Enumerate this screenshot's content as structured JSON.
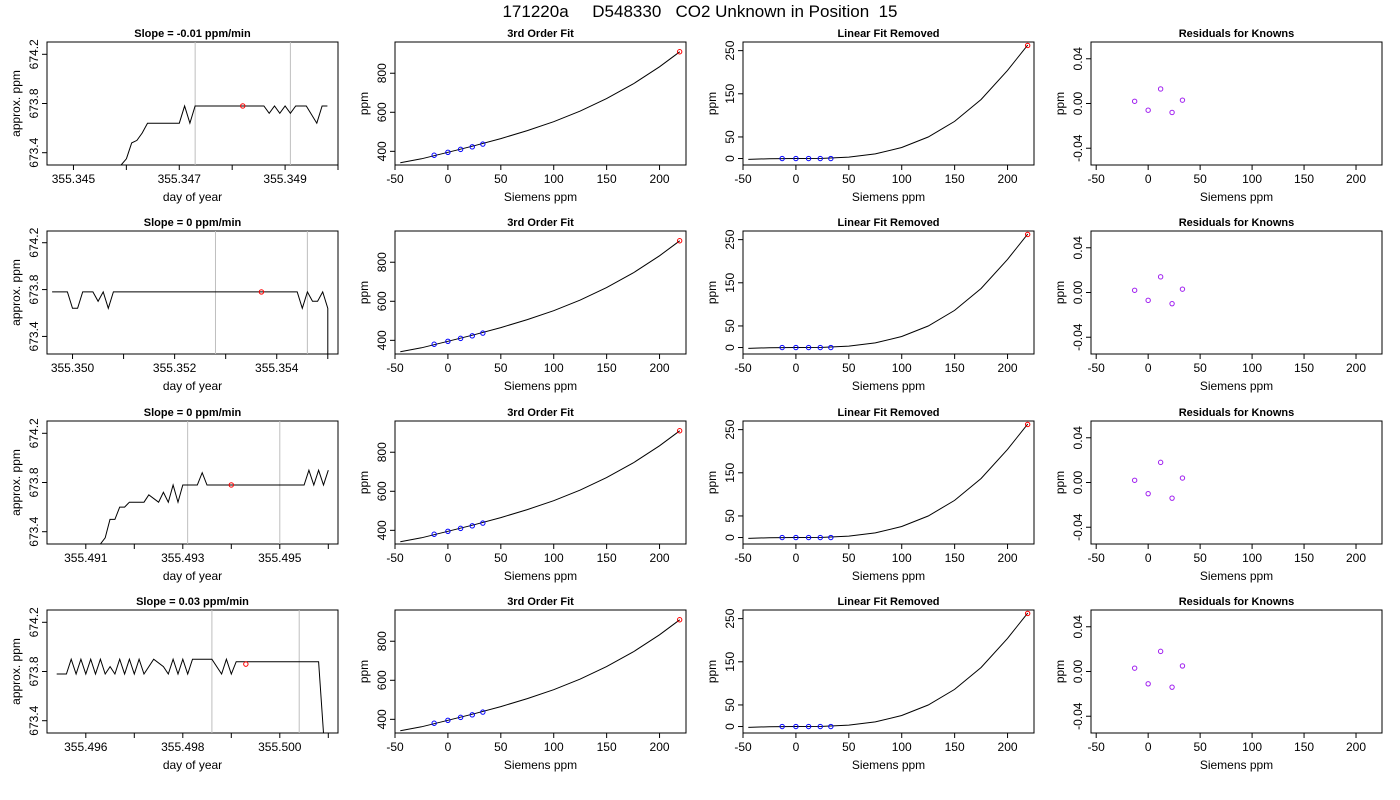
{
  "page": {
    "title": "171220a     D548330   CO2 Unknown in Position  15"
  },
  "chart_data": [
    {
      "type": "line",
      "panel": "timeseries",
      "row": 0,
      "title": "Slope =  -0.01  ppm/min",
      "xlabel": "day of year",
      "ylabel": "approx. ppm",
      "xlim": [
        355.3445,
        355.35
      ],
      "ylim": [
        673.3,
        674.3
      ],
      "xticks": [
        355.345,
        355.346,
        355.347,
        355.348,
        355.349,
        355.35
      ],
      "xtick_labels": [
        "355.345",
        "",
        "355.347",
        "",
        "355.349",
        ""
      ],
      "yticks": [
        673.4,
        673.8,
        674.2
      ],
      "ytick_labels": [
        "673.4",
        "673.8",
        "674.2"
      ],
      "vlines": [
        355.3473,
        355.3491
      ],
      "x": [
        355.3459,
        355.346,
        355.3461,
        355.3462,
        355.3463,
        355.3464,
        355.3465,
        355.3467,
        355.347,
        355.3471,
        355.3472,
        355.3473,
        355.3474,
        355.3475,
        355.3476,
        355.3477,
        355.3478,
        355.348,
        355.3482,
        355.3484,
        355.3486,
        355.3487,
        355.3488,
        355.3489,
        355.349,
        355.3491,
        355.3492,
        355.3493,
        355.3494,
        355.3496,
        355.3497,
        355.3498
      ],
      "y": [
        673.3,
        673.35,
        673.48,
        673.5,
        673.56,
        673.64,
        673.64,
        673.64,
        673.64,
        673.78,
        673.64,
        673.78,
        673.78,
        673.78,
        673.78,
        673.78,
        673.78,
        673.78,
        673.78,
        673.78,
        673.78,
        673.72,
        673.78,
        673.72,
        673.78,
        673.72,
        673.78,
        673.78,
        673.78,
        673.64,
        673.78,
        673.78
      ],
      "marker": {
        "x": 355.3482,
        "y": 673.78,
        "color": "#ff0000"
      }
    },
    {
      "type": "line",
      "panel": "fit",
      "row": 0,
      "title": "3rd Order Fit",
      "xlabel": "Siemens ppm",
      "ylabel": "ppm",
      "xlim": [
        -50,
        225
      ],
      "ylim": [
        330,
        960
      ],
      "xticks": [
        -50,
        0,
        50,
        100,
        150,
        200
      ],
      "yticks": [
        400,
        600,
        800
      ],
      "curve_x": [
        -45,
        -25,
        0,
        25,
        50,
        75,
        100,
        125,
        150,
        175,
        200,
        219
      ],
      "curve_y": [
        342,
        362,
        395,
        429,
        465,
        506,
        552,
        606,
        670,
        745,
        833,
        910
      ],
      "known_x": [
        -13,
        0,
        12,
        23,
        33
      ],
      "known_y": [
        380,
        395,
        410,
        423,
        437
      ],
      "unknown": {
        "x": 219,
        "y": 910
      }
    },
    {
      "type": "line",
      "panel": "linfit",
      "row": 0,
      "title": "Linear Fit Removed",
      "xlabel": "Siemens ppm",
      "ylabel": "ppm",
      "xlim": [
        -50,
        225
      ],
      "ylim": [
        -15,
        270
      ],
      "xticks": [
        -50,
        0,
        50,
        100,
        150,
        200
      ],
      "yticks": [
        0,
        50,
        150,
        250
      ],
      "curve_x": [
        -45,
        -25,
        0,
        25,
        50,
        75,
        100,
        125,
        150,
        175,
        200,
        219
      ],
      "curve_y": [
        -2.0,
        -0.4,
        0.0,
        0.4,
        3.2,
        10.8,
        25.5,
        49.8,
        86.1,
        136.7,
        204.1,
        262.8
      ],
      "known_x": [
        -13,
        0,
        12,
        23,
        33
      ],
      "known_y": [
        0,
        0,
        0,
        0,
        0
      ],
      "unknown": {
        "x": 219,
        "y": 262
      }
    },
    {
      "type": "scatter",
      "panel": "resid",
      "row": 0,
      "title": "Residuals for Knowns",
      "xlabel": "Siemens ppm",
      "ylabel": "ppm",
      "xlim": [
        -55,
        225
      ],
      "ylim": [
        -0.055,
        0.055
      ],
      "xticks": [
        -50,
        0,
        50,
        100,
        150,
        200
      ],
      "yticks": [
        -0.04,
        0.0,
        0.04
      ],
      "ytick_labels": [
        "-0.04",
        "0.00",
        "0.04"
      ],
      "x": [
        -13,
        0,
        12,
        23,
        33
      ],
      "y": [
        0.002,
        -0.006,
        0.013,
        -0.008,
        0.003
      ]
    },
    {
      "type": "line",
      "panel": "timeseries",
      "row": 1,
      "title": "Slope =  0  ppm/min",
      "xlabel": "day of year",
      "ylabel": "approx. ppm",
      "xlim": [
        355.3495,
        355.3552
      ],
      "ylim": [
        673.25,
        674.3
      ],
      "xticks": [
        355.35,
        355.351,
        355.352,
        355.353,
        355.354,
        355.355
      ],
      "xtick_labels": [
        "355.350",
        "",
        "355.352",
        "",
        "355.354",
        ""
      ],
      "yticks": [
        673.4,
        673.8,
        674.2
      ],
      "ytick_labels": [
        "673.4",
        "673.8",
        "674.2"
      ],
      "vlines": [
        355.3528,
        355.3546
      ],
      "x": [
        355.3496,
        355.3498,
        355.3499,
        355.35,
        355.3501,
        355.3502,
        355.3504,
        355.3505,
        355.3506,
        355.3507,
        355.3508,
        355.3509,
        355.351,
        355.3512,
        355.3514,
        355.3516,
        355.3518,
        355.352,
        355.3522,
        355.3524,
        355.3526,
        355.3528,
        355.353,
        355.3532,
        355.3534,
        355.3536,
        355.3538,
        355.354,
        355.3542,
        355.3544,
        355.3545,
        355.3546,
        355.3547,
        355.3548,
        355.3549,
        355.355,
        355.355
      ],
      "y": [
        673.78,
        673.78,
        673.78,
        673.64,
        673.64,
        673.78,
        673.78,
        673.7,
        673.78,
        673.64,
        673.78,
        673.78,
        673.78,
        673.78,
        673.78,
        673.78,
        673.78,
        673.78,
        673.78,
        673.78,
        673.78,
        673.78,
        673.78,
        673.78,
        673.78,
        673.78,
        673.78,
        673.78,
        673.78,
        673.78,
        673.64,
        673.78,
        673.7,
        673.7,
        673.78,
        673.64,
        673.25
      ],
      "marker": {
        "x": 355.3537,
        "y": 673.78,
        "color": "#ff0000"
      }
    },
    {
      "type": "line",
      "panel": "fit",
      "row": 1,
      "title": "3rd Order Fit",
      "xlabel": "Siemens ppm",
      "ylabel": "ppm",
      "xlim": [
        -50,
        225
      ],
      "ylim": [
        330,
        960
      ],
      "xticks": [
        -50,
        0,
        50,
        100,
        150,
        200
      ],
      "yticks": [
        400,
        600,
        800
      ],
      "curve_x": [
        -45,
        -25,
        0,
        25,
        50,
        75,
        100,
        125,
        150,
        175,
        200,
        219
      ],
      "curve_y": [
        342,
        362,
        395,
        429,
        465,
        506,
        552,
        606,
        670,
        745,
        833,
        910
      ],
      "known_x": [
        -13,
        0,
        12,
        23,
        33
      ],
      "known_y": [
        380,
        395,
        410,
        423,
        437
      ],
      "unknown": {
        "x": 219,
        "y": 910
      }
    },
    {
      "type": "line",
      "panel": "linfit",
      "row": 1,
      "title": "Linear Fit Removed",
      "xlabel": "Siemens ppm",
      "ylabel": "ppm",
      "xlim": [
        -50,
        225
      ],
      "ylim": [
        -15,
        270
      ],
      "xticks": [
        -50,
        0,
        50,
        100,
        150,
        200
      ],
      "yticks": [
        0,
        50,
        150,
        250
      ],
      "curve_x": [
        -45,
        -25,
        0,
        25,
        50,
        75,
        100,
        125,
        150,
        175,
        200,
        219
      ],
      "curve_y": [
        -2.0,
        -0.4,
        0.0,
        0.4,
        3.2,
        10.8,
        25.5,
        49.8,
        86.1,
        136.7,
        204.1,
        262.8
      ],
      "known_x": [
        -13,
        0,
        12,
        23,
        33
      ],
      "known_y": [
        0,
        0,
        0,
        0,
        0
      ],
      "unknown": {
        "x": 219,
        "y": 262
      }
    },
    {
      "type": "scatter",
      "panel": "resid",
      "row": 1,
      "title": "Residuals for Knowns",
      "xlabel": "Siemens ppm",
      "ylabel": "ppm",
      "xlim": [
        -55,
        225
      ],
      "ylim": [
        -0.055,
        0.055
      ],
      "xticks": [
        -50,
        0,
        50,
        100,
        150,
        200
      ],
      "yticks": [
        -0.04,
        0.0,
        0.04
      ],
      "ytick_labels": [
        "-0.04",
        "0.00",
        "0.04"
      ],
      "x": [
        -13,
        0,
        12,
        23,
        33
      ],
      "y": [
        0.002,
        -0.007,
        0.014,
        -0.01,
        0.003
      ]
    },
    {
      "type": "line",
      "panel": "timeseries",
      "row": 2,
      "title": "Slope =  0  ppm/min",
      "xlabel": "day of year",
      "ylabel": "approx. ppm",
      "xlim": [
        355.4902,
        355.4962
      ],
      "ylim": [
        673.3,
        674.3
      ],
      "xticks": [
        355.491,
        355.492,
        355.493,
        355.494,
        355.495,
        355.496
      ],
      "xtick_labels": [
        "355.491",
        "",
        "355.493",
        "",
        "355.495",
        ""
      ],
      "yticks": [
        673.4,
        673.8,
        674.2
      ],
      "ytick_labels": [
        "673.4",
        "673.8",
        "674.2"
      ],
      "vlines": [
        355.4931,
        355.495
      ],
      "x": [
        355.4913,
        355.4914,
        355.4915,
        355.4916,
        355.4917,
        355.4918,
        355.4919,
        355.492,
        355.4921,
        355.4922,
        355.4923,
        355.4925,
        355.4926,
        355.4927,
        355.4928,
        355.4929,
        355.493,
        355.4931,
        355.4933,
        355.4934,
        355.4935,
        355.4936,
        355.4938,
        355.494,
        355.4943,
        355.4946,
        355.495,
        355.4953,
        355.4955,
        355.4956,
        355.4957,
        355.4958,
        355.4959,
        355.496
      ],
      "y": [
        673.3,
        673.35,
        673.5,
        673.5,
        673.6,
        673.6,
        673.64,
        673.64,
        673.64,
        673.64,
        673.7,
        673.64,
        673.72,
        673.64,
        673.78,
        673.64,
        673.78,
        673.78,
        673.78,
        673.88,
        673.78,
        673.78,
        673.78,
        673.78,
        673.78,
        673.78,
        673.78,
        673.78,
        673.78,
        673.9,
        673.78,
        673.9,
        673.78,
        673.9
      ],
      "marker": {
        "x": 355.494,
        "y": 673.78,
        "color": "#ff0000"
      }
    },
    {
      "type": "line",
      "panel": "fit",
      "row": 2,
      "title": "3rd Order Fit",
      "xlabel": "Siemens ppm",
      "ylabel": "ppm",
      "xlim": [
        -50,
        225
      ],
      "ylim": [
        330,
        960
      ],
      "xticks": [
        -50,
        0,
        50,
        100,
        150,
        200
      ],
      "yticks": [
        400,
        600,
        800
      ],
      "curve_x": [
        -45,
        -25,
        0,
        25,
        50,
        75,
        100,
        125,
        150,
        175,
        200,
        219
      ],
      "curve_y": [
        342,
        362,
        395,
        429,
        465,
        506,
        552,
        606,
        670,
        745,
        833,
        910
      ],
      "known_x": [
        -13,
        0,
        12,
        23,
        33
      ],
      "known_y": [
        380,
        395,
        410,
        423,
        437
      ],
      "unknown": {
        "x": 219,
        "y": 910
      }
    },
    {
      "type": "line",
      "panel": "linfit",
      "row": 2,
      "title": "Linear Fit Removed",
      "xlabel": "Siemens ppm",
      "ylabel": "ppm",
      "xlim": [
        -50,
        225
      ],
      "ylim": [
        -15,
        270
      ],
      "xticks": [
        -50,
        0,
        50,
        100,
        150,
        200
      ],
      "yticks": [
        0,
        50,
        150,
        250
      ],
      "curve_x": [
        -45,
        -25,
        0,
        25,
        50,
        75,
        100,
        125,
        150,
        175,
        200,
        219
      ],
      "curve_y": [
        -2.0,
        -0.4,
        0.0,
        0.4,
        3.2,
        10.8,
        25.5,
        49.8,
        86.1,
        136.7,
        204.1,
        262.8
      ],
      "known_x": [
        -13,
        0,
        12,
        23,
        33
      ],
      "known_y": [
        0,
        0,
        0,
        0,
        0
      ],
      "unknown": {
        "x": 219,
        "y": 262
      }
    },
    {
      "type": "scatter",
      "panel": "resid",
      "row": 2,
      "title": "Residuals for Knowns",
      "xlabel": "Siemens ppm",
      "ylabel": "ppm",
      "xlim": [
        -55,
        225
      ],
      "ylim": [
        -0.055,
        0.055
      ],
      "xticks": [
        -50,
        0,
        50,
        100,
        150,
        200
      ],
      "yticks": [
        -0.04,
        0.0,
        0.04
      ],
      "ytick_labels": [
        "-0.04",
        "0.00",
        "0.04"
      ],
      "x": [
        -13,
        0,
        12,
        23,
        33
      ],
      "y": [
        0.002,
        -0.01,
        0.018,
        -0.014,
        0.004
      ]
    },
    {
      "type": "line",
      "panel": "timeseries",
      "row": 3,
      "title": "Slope =  0.03  ppm/min",
      "xlabel": "day of year",
      "ylabel": "approx. ppm",
      "xlim": [
        355.4952,
        355.5012
      ],
      "ylim": [
        673.3,
        674.3
      ],
      "xticks": [
        355.496,
        355.497,
        355.498,
        355.499,
        355.5,
        355.501
      ],
      "xtick_labels": [
        "355.496",
        "",
        "355.498",
        "",
        "355.500",
        ""
      ],
      "yticks": [
        673.4,
        673.8,
        674.2
      ],
      "ytick_labels": [
        "673.4",
        "673.8",
        "674.2"
      ],
      "vlines": [
        355.4986,
        355.5004
      ],
      "x": [
        355.4954,
        355.4956,
        355.4957,
        355.4958,
        355.4959,
        355.496,
        355.4961,
        355.4962,
        355.4963,
        355.4964,
        355.4965,
        355.4966,
        355.4967,
        355.4968,
        355.4969,
        355.497,
        355.4971,
        355.4972,
        355.4974,
        355.4976,
        355.4977,
        355.4978,
        355.4979,
        355.498,
        355.4981,
        355.4982,
        355.4984,
        355.4986,
        355.4988,
        355.4989,
        355.499,
        355.4991,
        355.4993,
        355.4996,
        355.5,
        355.5004,
        355.5008,
        355.5009
      ],
      "y": [
        673.78,
        673.78,
        673.9,
        673.78,
        673.9,
        673.78,
        673.9,
        673.78,
        673.9,
        673.78,
        673.84,
        673.78,
        673.9,
        673.78,
        673.9,
        673.78,
        673.9,
        673.78,
        673.9,
        673.84,
        673.78,
        673.9,
        673.78,
        673.9,
        673.78,
        673.9,
        673.9,
        673.9,
        673.78,
        673.9,
        673.78,
        673.88,
        673.88,
        673.88,
        673.88,
        673.88,
        673.88,
        673.3
      ],
      "marker": {
        "x": 355.4993,
        "y": 673.86,
        "color": "#ff0000"
      }
    },
    {
      "type": "line",
      "panel": "fit",
      "row": 3,
      "title": "3rd Order Fit",
      "xlabel": "Siemens ppm",
      "ylabel": "ppm",
      "xlim": [
        -50,
        225
      ],
      "ylim": [
        330,
        960
      ],
      "xticks": [
        -50,
        0,
        50,
        100,
        150,
        200
      ],
      "yticks": [
        400,
        600,
        800
      ],
      "curve_x": [
        -45,
        -25,
        0,
        25,
        50,
        75,
        100,
        125,
        150,
        175,
        200,
        219
      ],
      "curve_y": [
        342,
        362,
        395,
        429,
        465,
        506,
        552,
        606,
        670,
        745,
        833,
        910
      ],
      "known_x": [
        -13,
        0,
        12,
        23,
        33
      ],
      "known_y": [
        380,
        395,
        410,
        423,
        437
      ],
      "unknown": {
        "x": 219,
        "y": 910
      }
    },
    {
      "type": "line",
      "panel": "linfit",
      "row": 3,
      "title": "Linear Fit Removed",
      "xlabel": "Siemens ppm",
      "ylabel": "ppm",
      "xlim": [
        -50,
        225
      ],
      "ylim": [
        -15,
        270
      ],
      "xticks": [
        -50,
        0,
        50,
        100,
        150,
        200
      ],
      "yticks": [
        0,
        50,
        150,
        250
      ],
      "curve_x": [
        -45,
        -25,
        0,
        25,
        50,
        75,
        100,
        125,
        150,
        175,
        200,
        219
      ],
      "curve_y": [
        -2.0,
        -0.4,
        0.0,
        0.4,
        3.2,
        10.8,
        25.5,
        49.8,
        86.1,
        136.7,
        204.1,
        262.8
      ],
      "known_x": [
        -13,
        0,
        12,
        23,
        33
      ],
      "known_y": [
        0,
        0,
        0,
        0,
        0
      ],
      "unknown": {
        "x": 219,
        "y": 262
      }
    },
    {
      "type": "scatter",
      "panel": "resid",
      "row": 3,
      "title": "Residuals for Knowns",
      "xlabel": "Siemens ppm",
      "ylabel": "ppm",
      "xlim": [
        -55,
        225
      ],
      "ylim": [
        -0.055,
        0.055
      ],
      "xticks": [
        -50,
        0,
        50,
        100,
        150,
        200
      ],
      "yticks": [
        -0.04,
        0.0,
        0.04
      ],
      "ytick_labels": [
        "-0.04",
        "0.00",
        "0.04"
      ],
      "x": [
        -13,
        0,
        12,
        23,
        33
      ],
      "y": [
        0.003,
        -0.011,
        0.018,
        -0.014,
        0.005
      ]
    }
  ],
  "colors": {
    "axis": "#000000",
    "vline": "#bebebe",
    "unknown_point": "#ff0000",
    "known_point": "#0000ff",
    "residual_point": "#a020f0"
  }
}
